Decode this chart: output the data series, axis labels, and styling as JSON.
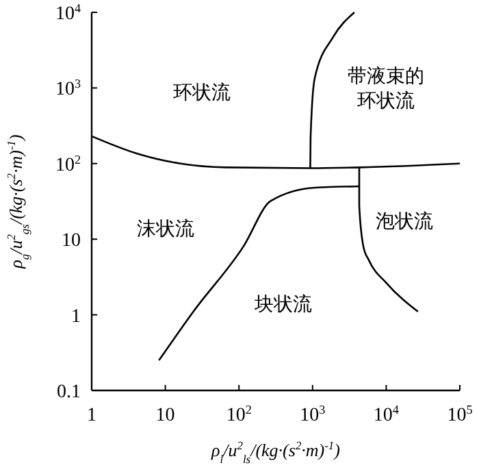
{
  "chart_data": {
    "type": "line",
    "xlabel": "ρ$_{l}$/u$^{2}$$_{ls}$/(kg·(s$^{2}$·m)$^{-1}$)",
    "ylabel": "ρ$_{g}$/u$^{2}$$_{gs}$/(kg·(s$^{2}$·m)$^{-1}$)",
    "log": "xy",
    "xlim": [
      1,
      100000
    ],
    "ylim": [
      0.1,
      10000
    ],
    "xticks": [
      1,
      10,
      {
        "value": 100,
        "label": "10$^{2}$"
      },
      {
        "value": 1000,
        "label": "10$^{3}$"
      },
      {
        "value": 10000,
        "label": "10$^{4}$"
      },
      {
        "value": 100000,
        "label": "10$^{5}$"
      }
    ],
    "yticks": [
      {
        "value": 0.1,
        "label": "0.1"
      },
      1,
      10,
      {
        "value": 100,
        "label": "10$^{2}$"
      },
      {
        "value": 1000,
        "label": "10$^{3}$"
      },
      {
        "value": 10000,
        "label": "10$^{4}$"
      }
    ],
    "grid": false,
    "series": [
      {
        "color": "#000000",
        "x": [
          1,
          4,
          16,
          66,
          930,
          4470,
          100000
        ],
        "values": [
          230,
          137,
          100,
          89,
          87,
          89,
          100
        ]
      },
      {
        "color": "#000000",
        "x": [
          930,
          940,
          1070,
          1900,
          3700
        ],
        "values": [
          87,
          225,
          1350,
          4700,
          10000
        ]
      },
      {
        "color": "#000000",
        "x": [
          8.2,
          24,
          115,
          270,
          1070,
          4300
        ],
        "values": [
          0.25,
          1.1,
          8,
          32,
          48,
          50
        ]
      },
      {
        "color": "#000000",
        "x": [
          4300,
          4300,
          4900,
          5800,
          10200,
          27000
        ],
        "values": [
          87,
          28,
          8,
          5.3,
          2.6,
          1.1
        ]
      }
    ],
    "annotations": [
      "环状流",
      "带液束的环状流",
      "沫状流",
      "块状流",
      "泡状流"
    ]
  }
}
